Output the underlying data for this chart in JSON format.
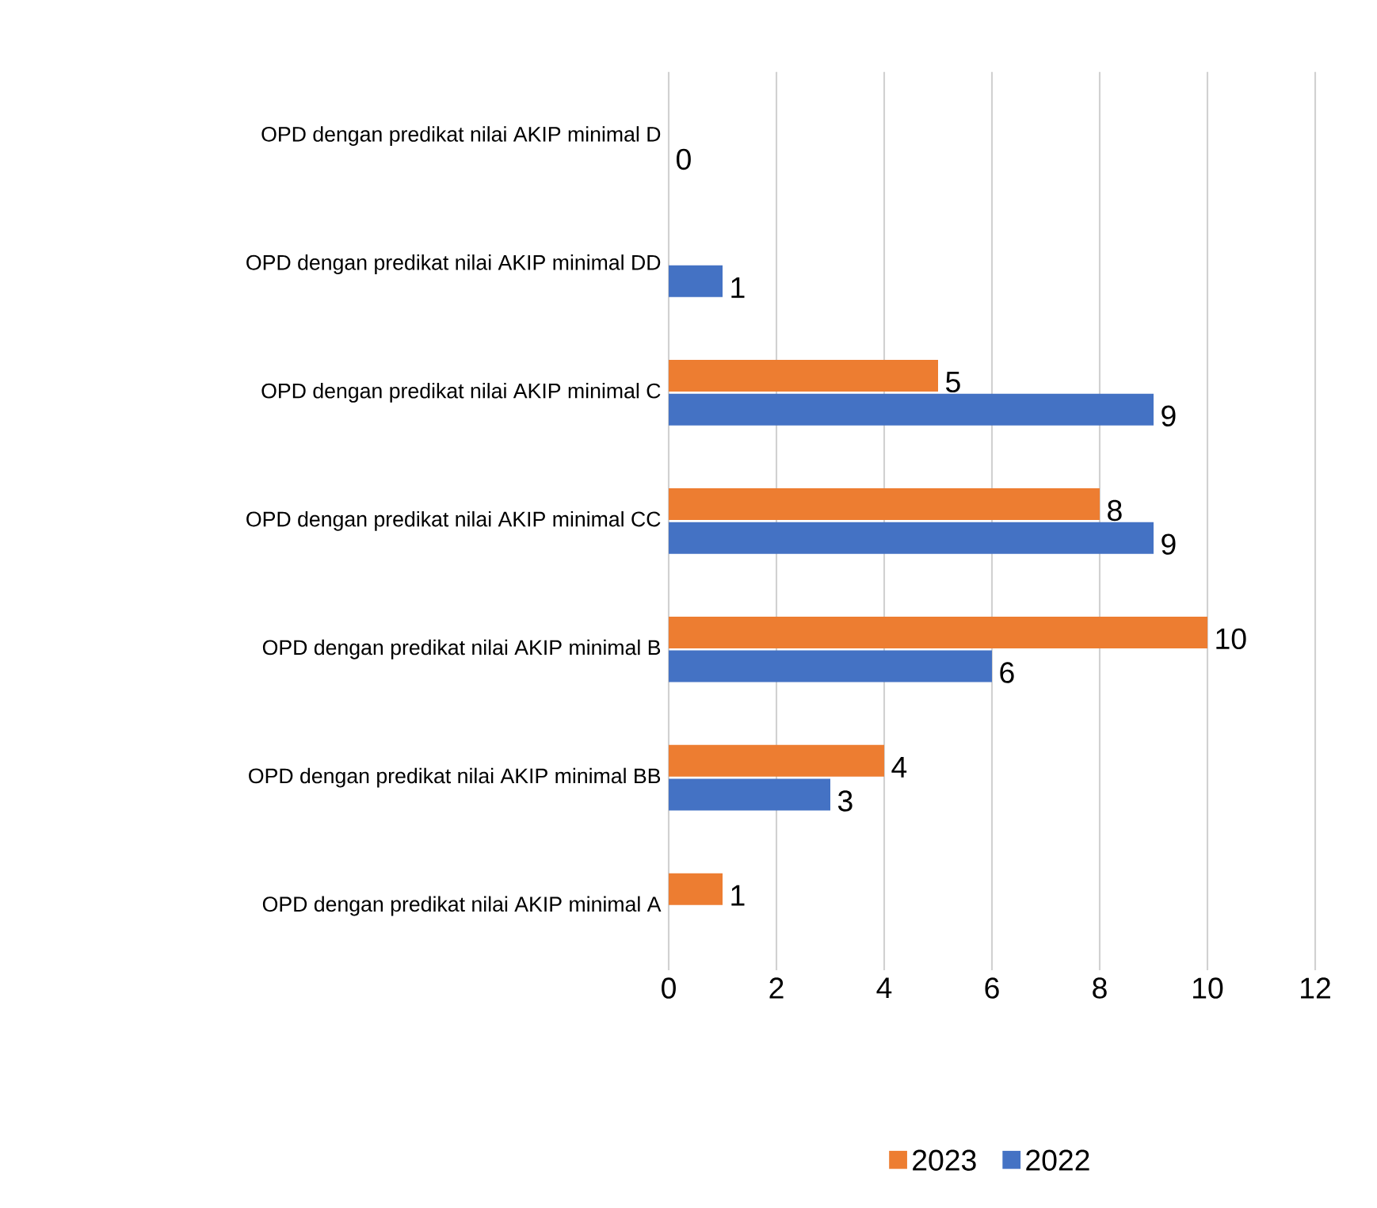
{
  "chart_data": {
    "type": "bar",
    "orientation": "horizontal",
    "categories": [
      "OPD dengan predikat nilai AKIP minimal D",
      "OPD dengan predikat nilai AKIP minimal DD",
      "OPD dengan predikat nilai AKIP minimal C",
      "OPD dengan predikat nilai AKIP minimal CC",
      "OPD dengan predikat nilai AKIP minimal B",
      "OPD dengan predikat nilai AKIP minimal BB",
      "OPD dengan predikat nilai AKIP minimal A"
    ],
    "series": [
      {
        "name": "2023",
        "color": "#ed7d31",
        "values": [
          null,
          null,
          5,
          8,
          10,
          4,
          1
        ],
        "value_labels": [
          null,
          null,
          "5",
          "8",
          "10",
          "4",
          "1"
        ]
      },
      {
        "name": "2022",
        "color": "#4472c4",
        "values": [
          0,
          1,
          9,
          9,
          6,
          3,
          null
        ],
        "value_labels": [
          "0",
          "1",
          "9",
          "9",
          "6",
          "3",
          null
        ]
      }
    ],
    "xlim": [
      0,
      12
    ],
    "xticks": [
      0,
      2,
      4,
      6,
      8,
      10,
      12
    ],
    "grid": "x",
    "legend": "bottom"
  }
}
